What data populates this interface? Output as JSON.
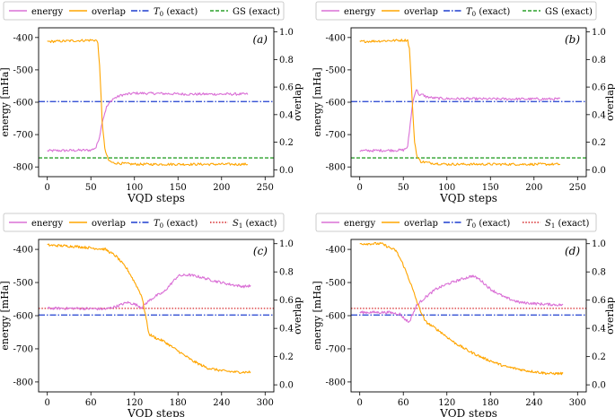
{
  "figure": {
    "panels": [
      "(a)",
      "(b)",
      "(c)",
      "(d)"
    ]
  },
  "chart_data": [
    {
      "type": "line",
      "panel": "(a)",
      "xlabel": "VQD steps",
      "ylabel_left": "energy [mHa]",
      "ylabel_right": "overlap",
      "xlim": [
        -10,
        260
      ],
      "ylim_left": [
        -830,
        -370
      ],
      "ylim_right": [
        -0.05,
        1.03
      ],
      "xticks": [
        0,
        50,
        100,
        150,
        200,
        250
      ],
      "yticks_left": [
        -400,
        -500,
        -600,
        -700,
        -800
      ],
      "yticks_right": [
        1.0,
        0.8,
        0.6,
        0.4,
        0.2,
        0.0
      ],
      "legend": [
        "energy",
        "overlap",
        "T0 (exact)",
        "GS (exact)"
      ],
      "colors": {
        "energy": "#da70d6",
        "overlap": "#ffa500",
        "ref1": "#1f3fcf",
        "ref2": "#2ca02c"
      },
      "ref1_value": -598,
      "ref2_value": -772,
      "energy_keypoints": {
        "x": [
          0,
          50,
          56,
          60,
          63,
          68,
          75,
          85,
          100,
          130,
          160,
          200,
          230
        ],
        "y": [
          -750,
          -748,
          -740,
          -705,
          -660,
          -615,
          -590,
          -578,
          -572,
          -573,
          -575,
          -575,
          -575
        ]
      },
      "overlap_keypoints": {
        "x": [
          0,
          50,
          56,
          58,
          60,
          63,
          66,
          70,
          75,
          100,
          150,
          200,
          230
        ],
        "y": [
          0.93,
          0.94,
          0.94,
          0.92,
          0.75,
          0.35,
          0.15,
          0.07,
          0.05,
          0.04,
          0.04,
          0.04,
          0.04
        ]
      }
    },
    {
      "type": "line",
      "panel": "(b)",
      "xlabel": "VQD steps",
      "ylabel_left": "energy [mHa]",
      "ylabel_right": "overlap",
      "xlim": [
        -10,
        260
      ],
      "ylim_left": [
        -830,
        -370
      ],
      "ylim_right": [
        -0.05,
        1.03
      ],
      "xticks": [
        0,
        50,
        100,
        150,
        200,
        250
      ],
      "yticks_left": [
        -400,
        -500,
        -600,
        -700,
        -800
      ],
      "yticks_right": [
        1.0,
        0.8,
        0.6,
        0.4,
        0.2,
        0.0
      ],
      "legend": [
        "energy",
        "overlap",
        "T0 (exact)",
        "GS (exact)"
      ],
      "colors": {
        "energy": "#da70d6",
        "overlap": "#ffa500",
        "ref1": "#1f3fcf",
        "ref2": "#2ca02c"
      },
      "ref1_value": -598,
      "ref2_value": -772,
      "energy_keypoints": {
        "x": [
          0,
          50,
          55,
          57,
          59,
          61,
          63,
          65,
          67,
          69,
          72,
          76,
          85,
          100,
          150,
          200,
          230
        ],
        "y": [
          -750,
          -748,
          -738,
          -690,
          -640,
          -600,
          -575,
          -560,
          -570,
          -580,
          -576,
          -583,
          -587,
          -589,
          -590,
          -590,
          -590
        ]
      },
      "overlap_keypoints": {
        "x": [
          0,
          50,
          55,
          57,
          59,
          61,
          63,
          66,
          70,
          80,
          100,
          150,
          200,
          230
        ],
        "y": [
          0.93,
          0.94,
          0.94,
          0.88,
          0.65,
          0.4,
          0.2,
          0.09,
          0.06,
          0.05,
          0.04,
          0.04,
          0.04,
          0.04
        ]
      }
    },
    {
      "type": "line",
      "panel": "(c)",
      "xlabel": "VQD steps",
      "ylabel_left": "energy [mHa]",
      "ylabel_right": "overlap",
      "xlim": [
        -12,
        312
      ],
      "ylim_left": [
        -830,
        -370
      ],
      "ylim_right": [
        -0.05,
        1.03
      ],
      "xticks": [
        0,
        60,
        120,
        180,
        240,
        300
      ],
      "yticks_left": [
        -400,
        -500,
        -600,
        -700,
        -800
      ],
      "yticks_right": [
        1.0,
        0.8,
        0.6,
        0.4,
        0.2,
        0.0
      ],
      "legend": [
        "energy",
        "overlap",
        "T0 (exact)",
        "S1 (exact)"
      ],
      "colors": {
        "energy": "#da70d6",
        "overlap": "#ffa500",
        "ref1": "#1f3fcf",
        "ref2": "#d62728"
      },
      "ref1_value": -598,
      "ref2_value": -578,
      "energy_keypoints": {
        "x": [
          0,
          40,
          80,
          95,
          110,
          120,
          130,
          140,
          150,
          160,
          170,
          180,
          195,
          210,
          230,
          250,
          270,
          280
        ],
        "y": [
          -578,
          -578,
          -580,
          -572,
          -560,
          -565,
          -575,
          -555,
          -540,
          -530,
          -505,
          -480,
          -477,
          -483,
          -495,
          -505,
          -512,
          -510
        ]
      },
      "overlap_keypoints": {
        "x": [
          0,
          40,
          60,
          80,
          95,
          110,
          120,
          130,
          135,
          140,
          150,
          160,
          180,
          200,
          220,
          240,
          260,
          280
        ],
        "y": [
          0.99,
          0.98,
          0.97,
          0.96,
          0.91,
          0.82,
          0.73,
          0.63,
          0.5,
          0.36,
          0.33,
          0.31,
          0.24,
          0.17,
          0.12,
          0.1,
          0.09,
          0.09
        ]
      }
    },
    {
      "type": "line",
      "panel": "(d)",
      "xlabel": "VQD steps",
      "ylabel_left": "energy [mHa]",
      "ylabel_right": "overlap",
      "xlim": [
        -12,
        312
      ],
      "ylim_left": [
        -830,
        -370
      ],
      "ylim_right": [
        -0.05,
        1.03
      ],
      "xticks": [
        0,
        60,
        120,
        180,
        240,
        300
      ],
      "yticks_left": [
        -400,
        -500,
        -600,
        -700,
        -800
      ],
      "yticks_right": [
        1.0,
        0.8,
        0.6,
        0.4,
        0.2,
        0.0
      ],
      "legend": [
        "energy",
        "overlap",
        "T0 (exact)",
        "S1 (exact)"
      ],
      "colors": {
        "energy": "#da70d6",
        "overlap": "#ffa500",
        "ref1": "#1f3fcf",
        "ref2": "#d62728"
      },
      "ref1_value": -598,
      "ref2_value": -578,
      "energy_keypoints": {
        "x": [
          0,
          40,
          55,
          62,
          68,
          72,
          78,
          90,
          105,
          120,
          140,
          155,
          165,
          180,
          200,
          220,
          250,
          280
        ],
        "y": [
          -590,
          -590,
          -595,
          -610,
          -620,
          -600,
          -570,
          -545,
          -520,
          -505,
          -490,
          -480,
          -490,
          -520,
          -545,
          -560,
          -565,
          -568
        ]
      },
      "overlap_keypoints": {
        "x": [
          0,
          30,
          50,
          60,
          70,
          80,
          90,
          110,
          130,
          150,
          170,
          200,
          230,
          260,
          280
        ],
        "y": [
          1.0,
          1.0,
          0.95,
          0.85,
          0.72,
          0.57,
          0.45,
          0.38,
          0.3,
          0.24,
          0.19,
          0.13,
          0.1,
          0.08,
          0.08
        ]
      }
    }
  ]
}
